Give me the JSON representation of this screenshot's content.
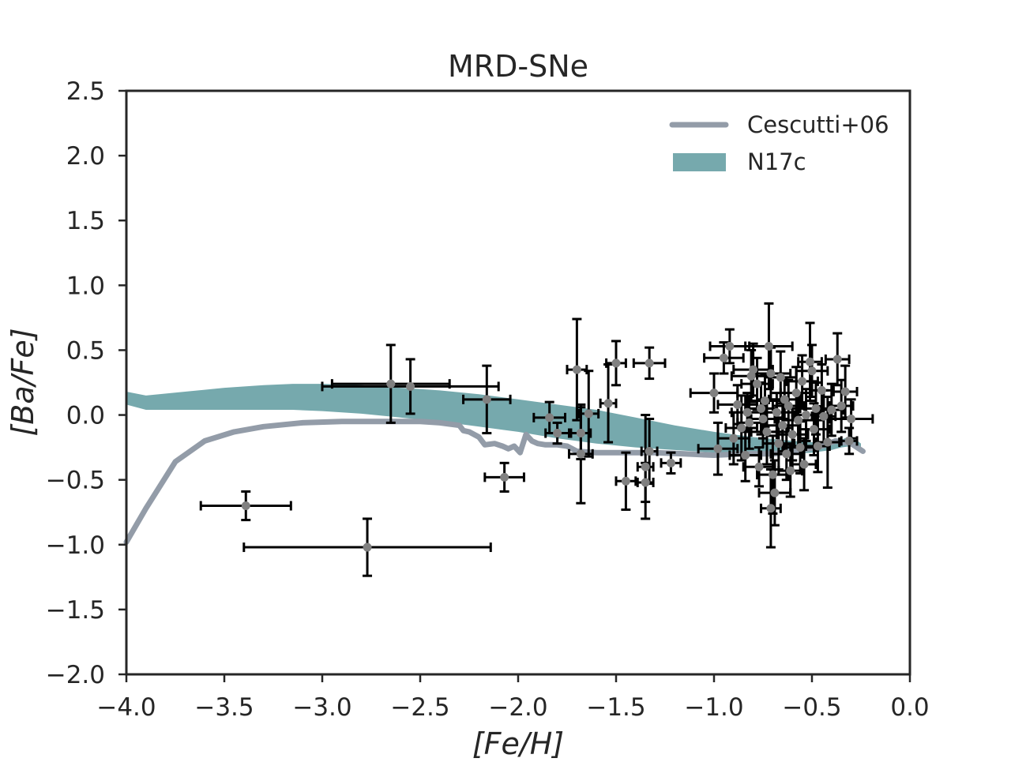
{
  "chart_data": {
    "type": "scatter",
    "title": "MRD-SNe",
    "xlabel": "[Fe/H]",
    "ylabel": "[Ba/Fe]",
    "xlim": [
      -4.0,
      0.0
    ],
    "ylim": [
      -2.0,
      2.5
    ],
    "xticks": [
      -4.0,
      -3.5,
      -3.0,
      -2.5,
      -2.0,
      -1.5,
      -1.0,
      -0.5,
      0.0
    ],
    "yticks": [
      -2.0,
      -1.5,
      -1.0,
      -0.5,
      0.0,
      0.5,
      1.0,
      1.5,
      2.0,
      2.5
    ],
    "xtick_labels": [
      "−4.0",
      "−3.5",
      "−3.0",
      "−2.5",
      "−2.0",
      "−1.5",
      "−1.0",
      "−0.5",
      "0.0"
    ],
    "ytick_labels": [
      "−2.0",
      "−1.5",
      "−1.0",
      "−0.5",
      "0.0",
      "0.5",
      "1.0",
      "1.5",
      "2.0",
      "2.5"
    ],
    "grid": false,
    "legend_position": "top-right",
    "colors": {
      "line": "#939ca8",
      "band": "#76a9ad",
      "point": "#808080",
      "errorbar": "#000000",
      "axes": "#262626"
    },
    "series": [
      {
        "name": "Cescutti+06",
        "type": "line",
        "x": [
          -4.0,
          -3.9,
          -3.75,
          -3.6,
          -3.45,
          -3.3,
          -3.1,
          -2.9,
          -2.7,
          -2.5,
          -2.4,
          -2.3,
          -2.28,
          -2.25,
          -2.2,
          -2.17,
          -2.12,
          -2.08,
          -2.05,
          -2.02,
          -1.99,
          -1.96,
          -1.93,
          -1.9,
          -1.86,
          -1.8,
          -1.75,
          -1.7,
          -1.6,
          -1.45,
          -1.3,
          -1.15,
          -1.0,
          -0.85,
          -0.7,
          -0.55,
          -0.45,
          -0.38,
          -0.3,
          -0.24
        ],
        "y": [
          -0.98,
          -0.72,
          -0.36,
          -0.2,
          -0.13,
          -0.09,
          -0.06,
          -0.05,
          -0.05,
          -0.05,
          -0.06,
          -0.08,
          -0.12,
          -0.13,
          -0.17,
          -0.23,
          -0.22,
          -0.24,
          -0.26,
          -0.24,
          -0.29,
          -0.15,
          -0.2,
          -0.22,
          -0.23,
          -0.23,
          -0.24,
          -0.28,
          -0.29,
          -0.29,
          -0.29,
          -0.3,
          -0.31,
          -0.3,
          -0.3,
          -0.27,
          -0.24,
          -0.2,
          -0.22,
          -0.28
        ]
      },
      {
        "name": "N17c",
        "type": "area",
        "x": [
          -4.0,
          -3.9,
          -3.7,
          -3.5,
          -3.3,
          -3.15,
          -3.0,
          -2.8,
          -2.6,
          -2.4,
          -2.2,
          -2.0,
          -1.8,
          -1.6,
          -1.4,
          -1.2,
          -1.0,
          -0.8,
          -0.6,
          -0.5,
          -0.4,
          -0.35,
          -0.3,
          -0.25
        ],
        "y_upper": [
          0.18,
          0.15,
          0.18,
          0.21,
          0.23,
          0.24,
          0.24,
          0.23,
          0.21,
          0.19,
          0.16,
          0.12,
          0.08,
          0.04,
          -0.02,
          -0.08,
          -0.13,
          -0.17,
          -0.2,
          -0.21,
          -0.21,
          -0.19,
          -0.16,
          -0.22
        ],
        "y_lower": [
          0.08,
          0.04,
          0.04,
          0.04,
          0.04,
          0.04,
          0.03,
          0.01,
          -0.02,
          -0.05,
          -0.09,
          -0.13,
          -0.18,
          -0.22,
          -0.25,
          -0.27,
          -0.29,
          -0.3,
          -0.3,
          -0.29,
          -0.27,
          -0.25,
          -0.24,
          -0.27
        ]
      },
      {
        "name": "",
        "type": "errorbar",
        "points": [
          {
            "x": -3.39,
            "y": -0.7,
            "xerr": 0.23,
            "yerr": 0.11
          },
          {
            "x": -2.77,
            "y": -1.02,
            "xerr": 0.63,
            "yerr": 0.22
          },
          {
            "x": -2.65,
            "y": 0.24,
            "xerr": 0.3,
            "yerr": 0.3
          },
          {
            "x": -2.55,
            "y": 0.22,
            "xerr": 0.45,
            "yerr": 0.21
          },
          {
            "x": -2.16,
            "y": 0.12,
            "xerr": 0.12,
            "yerr": 0.26
          },
          {
            "x": -2.07,
            "y": -0.48,
            "xerr": 0.1,
            "yerr": 0.11
          },
          {
            "x": -1.84,
            "y": -0.02,
            "xerr": 0.08,
            "yerr": 0.12
          },
          {
            "x": -1.8,
            "y": -0.14,
            "xerr": 0.06,
            "yerr": 0.08
          },
          {
            "x": -1.7,
            "y": 0.35,
            "xerr": 0.05,
            "yerr": 0.39
          },
          {
            "x": -1.68,
            "y": -0.14,
            "xerr": 0.05,
            "yerr": 0.2
          },
          {
            "x": -1.64,
            "y": 0.01,
            "xerr": 0.05,
            "yerr": 0.33
          },
          {
            "x": -1.68,
            "y": -0.3,
            "xerr": 0.06,
            "yerr": 0.38
          },
          {
            "x": -1.54,
            "y": 0.09,
            "xerr": 0.04,
            "yerr": 0.3
          },
          {
            "x": -1.5,
            "y": 0.4,
            "xerr": 0.05,
            "yerr": 0.17
          },
          {
            "x": -1.45,
            "y": -0.51,
            "xerr": 0.05,
            "yerr": 0.22
          },
          {
            "x": -1.35,
            "y": -0.4,
            "xerr": 0.04,
            "yerr": 0.4
          },
          {
            "x": -1.33,
            "y": 0.4,
            "xerr": 0.08,
            "yerr": 0.12
          },
          {
            "x": -1.33,
            "y": -0.28,
            "xerr": 0.04,
            "yerr": 0.25
          },
          {
            "x": -1.22,
            "y": -0.37,
            "xerr": 0.05,
            "yerr": 0.08
          },
          {
            "x": -1.35,
            "y": -0.52,
            "xerr": 0.04,
            "yerr": 0.15
          },
          {
            "x": -1.0,
            "y": 0.17,
            "xerr": 0.12,
            "yerr": 0.15
          },
          {
            "x": -0.98,
            "y": -0.26,
            "xerr": 0.1,
            "yerr": 0.2
          },
          {
            "x": -0.95,
            "y": 0.44,
            "xerr": 0.1,
            "yerr": 0.12
          },
          {
            "x": -0.92,
            "y": 0.53,
            "xerr": 0.1,
            "yerr": 0.13
          },
          {
            "x": -0.9,
            "y": -0.18,
            "xerr": 0.08,
            "yerr": 0.2
          },
          {
            "x": -0.88,
            "y": 0.08,
            "xerr": 0.1,
            "yerr": 0.15
          },
          {
            "x": -0.86,
            "y": -0.1,
            "xerr": 0.08,
            "yerr": 0.25
          },
          {
            "x": -0.84,
            "y": -0.31,
            "xerr": 0.08,
            "yerr": 0.2
          },
          {
            "x": -0.83,
            "y": 0.02,
            "xerr": 0.08,
            "yerr": 0.15
          },
          {
            "x": -0.82,
            "y": -0.06,
            "xerr": 0.06,
            "yerr": 0.2
          },
          {
            "x": -0.81,
            "y": 0.3,
            "xerr": 0.1,
            "yerr": 0.2
          },
          {
            "x": -0.8,
            "y": 0.35,
            "xerr": 0.1,
            "yerr": 0.2
          },
          {
            "x": -0.78,
            "y": 0.24,
            "xerr": 0.08,
            "yerr": 0.2
          },
          {
            "x": -0.77,
            "y": -0.4,
            "xerr": 0.08,
            "yerr": 0.15
          },
          {
            "x": -0.76,
            "y": 0.05,
            "xerr": 0.08,
            "yerr": 0.2
          },
          {
            "x": -0.75,
            "y": -0.03,
            "xerr": 0.06,
            "yerr": 0.15
          },
          {
            "x": -0.74,
            "y": 0.11,
            "xerr": 0.1,
            "yerr": 0.2
          },
          {
            "x": -0.73,
            "y": -0.13,
            "xerr": 0.08,
            "yerr": 0.25
          },
          {
            "x": -0.72,
            "y": 0.53,
            "xerr": 0.12,
            "yerr": 0.33
          },
          {
            "x": -0.71,
            "y": 0.32,
            "xerr": 0.1,
            "yerr": 0.2
          },
          {
            "x": -0.71,
            "y": -0.72,
            "xerr": 0.05,
            "yerr": 0.3
          },
          {
            "x": -0.7,
            "y": -0.46,
            "xerr": 0.08,
            "yerr": 0.3
          },
          {
            "x": -0.69,
            "y": -0.6,
            "xerr": 0.08,
            "yerr": 0.25
          },
          {
            "x": -0.68,
            "y": 0.02,
            "xerr": 0.08,
            "yerr": 0.15
          },
          {
            "x": -0.67,
            "y": -0.22,
            "xerr": 0.08,
            "yerr": 0.2
          },
          {
            "x": -0.66,
            "y": 0.29,
            "xerr": 0.08,
            "yerr": 0.2
          },
          {
            "x": -0.65,
            "y": -0.08,
            "xerr": 0.08,
            "yerr": 0.2
          },
          {
            "x": -0.64,
            "y": 0.12,
            "xerr": 0.08,
            "yerr": 0.15
          },
          {
            "x": -0.63,
            "y": -0.3,
            "xerr": 0.08,
            "yerr": 0.2
          },
          {
            "x": -0.62,
            "y": 0.07,
            "xerr": 0.08,
            "yerr": 0.2
          },
          {
            "x": -0.61,
            "y": -0.43,
            "xerr": 0.06,
            "yerr": 0.2
          },
          {
            "x": -0.6,
            "y": -0.15,
            "xerr": 0.08,
            "yerr": 0.2
          },
          {
            "x": -0.58,
            "y": 0.17,
            "xerr": 0.08,
            "yerr": 0.2
          },
          {
            "x": -0.57,
            "y": -0.04,
            "xerr": 0.08,
            "yerr": 0.2
          },
          {
            "x": -0.56,
            "y": -0.25,
            "xerr": 0.08,
            "yerr": 0.2
          },
          {
            "x": -0.55,
            "y": 0.26,
            "xerr": 0.08,
            "yerr": 0.2
          },
          {
            "x": -0.54,
            "y": -0.38,
            "xerr": 0.06,
            "yerr": 0.2
          },
          {
            "x": -0.53,
            "y": 0.0,
            "xerr": 0.06,
            "yerr": 0.2
          },
          {
            "x": -0.51,
            "y": 0.41,
            "xerr": 0.06,
            "yerr": 0.3
          },
          {
            "x": -0.5,
            "y": 0.34,
            "xerr": 0.08,
            "yerr": 0.2
          },
          {
            "x": -0.49,
            "y": -0.11,
            "xerr": 0.08,
            "yerr": 0.2
          },
          {
            "x": -0.48,
            "y": 0.05,
            "xerr": 0.08,
            "yerr": 0.2
          },
          {
            "x": -0.47,
            "y": -0.24,
            "xerr": 0.06,
            "yerr": 0.2
          },
          {
            "x": -0.45,
            "y": 0.19,
            "xerr": 0.06,
            "yerr": 0.2
          },
          {
            "x": -0.44,
            "y": -0.01,
            "xerr": 0.06,
            "yerr": 0.2
          },
          {
            "x": -0.42,
            "y": -0.21,
            "xerr": 0.06,
            "yerr": 0.35
          },
          {
            "x": -0.4,
            "y": 0.04,
            "xerr": 0.06,
            "yerr": 0.2
          },
          {
            "x": -0.37,
            "y": 0.43,
            "xerr": 0.06,
            "yerr": 0.2
          },
          {
            "x": -0.35,
            "y": 0.07,
            "xerr": 0.06,
            "yerr": 0.2
          },
          {
            "x": -0.33,
            "y": 0.18,
            "xerr": 0.06,
            "yerr": 0.2
          },
          {
            "x": -0.3,
            "y": -0.03,
            "xerr": 0.11,
            "yerr": 0.15
          },
          {
            "x": -0.31,
            "y": -0.2,
            "xerr": 0.04,
            "yerr": 0.1
          }
        ]
      }
    ]
  }
}
